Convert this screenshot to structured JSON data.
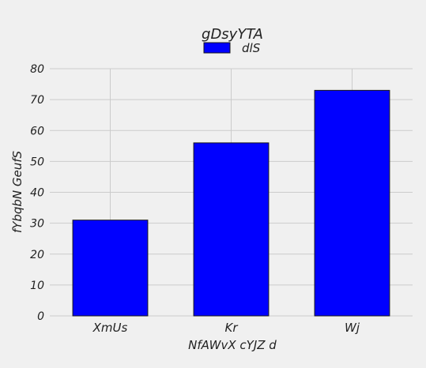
{
  "chart_data": {
    "type": "bar",
    "title": "gDsyYTA",
    "xlabel": "NfAWvX cYJZ d",
    "ylabel": "fYbqbN GeufS",
    "categories": [
      "XmUs",
      "Kr",
      "Wj"
    ],
    "series": [
      {
        "name": "dlS",
        "values": [
          31,
          56,
          73
        ],
        "color": "#0000ff"
      }
    ],
    "ylim": [
      0,
      80
    ],
    "yticks": [
      "0",
      "10",
      "20",
      "30",
      "40",
      "50",
      "60",
      "70",
      "80"
    ],
    "grid": true,
    "legend_position": "top-center"
  },
  "colors": {
    "background": "#f0f0f0",
    "grid": "#cbcbcb",
    "bar_edge": "#1a1a1a"
  }
}
